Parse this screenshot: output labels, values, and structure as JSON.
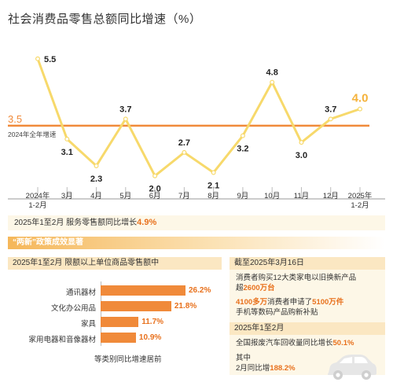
{
  "title": "社会消费品零售总额同比增速（%）",
  "chart_data": {
    "type": "line",
    "x": [
      "2024年 1-2月",
      "3月",
      "4月",
      "5月",
      "6月",
      "7月",
      "8月",
      "9月",
      "10月",
      "11月",
      "12月",
      "2025年 1-2月"
    ],
    "x_labels": [
      {
        "l1": "2024年",
        "l2": "1-2月"
      },
      {
        "l1": "3月",
        "l2": ""
      },
      {
        "l1": "4月",
        "l2": ""
      },
      {
        "l1": "5月",
        "l2": ""
      },
      {
        "l1": "6月",
        "l2": ""
      },
      {
        "l1": "7月",
        "l2": ""
      },
      {
        "l1": "8月",
        "l2": ""
      },
      {
        "l1": "9月",
        "l2": ""
      },
      {
        "l1": "10月",
        "l2": ""
      },
      {
        "l1": "11月",
        "l2": ""
      },
      {
        "l1": "12月",
        "l2": ""
      },
      {
        "l1": "2025年",
        "l2": "1-2月"
      }
    ],
    "values": [
      5.5,
      3.1,
      2.3,
      3.7,
      2.0,
      2.7,
      2.1,
      3.2,
      4.8,
      3.0,
      3.7,
      4.0
    ],
    "value_labels": [
      "5.5",
      "3.1",
      "2.3",
      "3.7",
      "2.0",
      "2.7",
      "2.1",
      "3.2",
      "4.8",
      "3.0",
      "3.7",
      "4.0"
    ],
    "label_pos": [
      "right",
      "below",
      "below",
      "above",
      "below",
      "above",
      "below",
      "below",
      "above",
      "below",
      "above",
      "above"
    ],
    "reference": {
      "value": 3.5,
      "label_value": "3.5",
      "label": "2024年全年增速"
    },
    "ylim": [
      1.5,
      6.2
    ],
    "grid": false,
    "colors": {
      "line": "#f7d96b",
      "reference": "#f08a3a",
      "last_label": "#f5b23a"
    }
  },
  "note": {
    "text": "2025年1至2月  服务零售额同比增长",
    "value": "4.9%"
  },
  "section": {
    "title": "“两新”政策成效显著",
    "left_head": "2025年1至2月  限额以上单位商品零售额中",
    "bars": [
      {
        "label": "通讯器材",
        "value": 26.2,
        "display": "26.2%"
      },
      {
        "label": "文化办公用品",
        "value": 21.8,
        "display": "21.8%"
      },
      {
        "label": "家具",
        "value": 11.7,
        "display": "11.7%"
      },
      {
        "label": "家用电器和音像器材",
        "value": 10.9,
        "display": "10.9%"
      }
    ],
    "bar_caption": "等类别同比增速居前",
    "right_head1": "截至2025年3月16日",
    "right_text1a": "消费者购买12大类家电以旧换新产品",
    "right_text1b_pre": "超",
    "right_text1b_hl": "2600万台",
    "right_text2_hl1": "4100多万",
    "right_text2_mid": "消费者申请了",
    "right_text2_hl2": "5100万件",
    "right_text2b": "手机等数码产品购新补贴",
    "right_head2": "2025年1至2月",
    "right_text3_pre": "全国报废汽车回收量同比增长",
    "right_text3_hl": "50.1%",
    "right_text4a": "其中",
    "right_text4b_pre": "2月同比增",
    "right_text4b_hl": "188.2%"
  },
  "icons": {
    "car": "car-icon"
  }
}
